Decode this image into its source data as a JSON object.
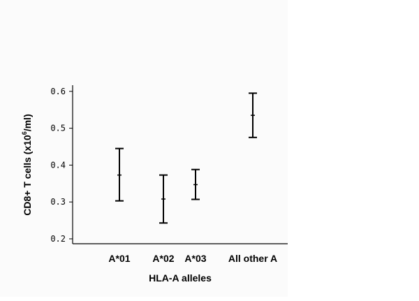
{
  "chart_data": {
    "type": "errorbar",
    "title": "",
    "xlabel": "HLA-A alleles",
    "ylabel": {
      "main": "CD8+ T cells (x10",
      "sup": "6",
      "tail": "/ml)"
    },
    "categories": [
      "A*01",
      "A*02",
      "A*03",
      "All other A"
    ],
    "series": [
      {
        "mean": [
          0.373,
          0.308,
          0.347,
          0.535
        ],
        "lower": [
          0.303,
          0.243,
          0.307,
          0.475
        ],
        "upper": [
          0.445,
          0.373,
          0.388,
          0.595
        ]
      }
    ],
    "yticks": [
      "0.2",
      "0.3",
      "0.4",
      "0.5",
      "0.6"
    ],
    "ylim": [
      0.18,
      0.62
    ],
    "grid": false,
    "legend": "none"
  }
}
